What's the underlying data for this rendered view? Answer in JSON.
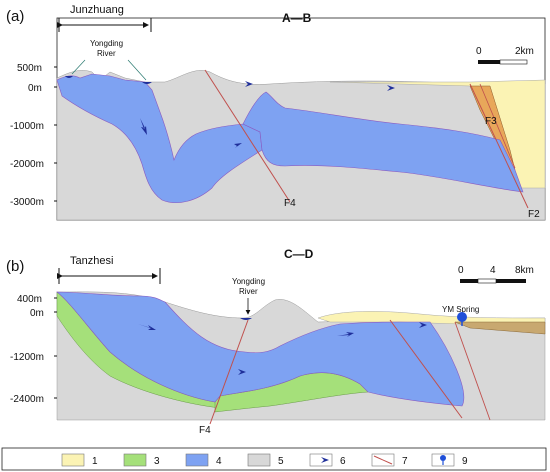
{
  "panel_a": {
    "panel_label": "(a)",
    "title": "A—B",
    "region_label": "Junzhuang",
    "river_label_line1": "Yongding",
    "river_label_line2": "River",
    "scale_start": "0",
    "scale_end": "2km",
    "depth_labels": [
      "500m",
      "0m",
      "-1000m",
      "-2000m",
      "-3000m"
    ],
    "faults": [
      "F4",
      "F3",
      "F2"
    ]
  },
  "panel_b": {
    "panel_label": "(b)",
    "title": "C—D",
    "region_label": "Tanzhesi",
    "river_label_line1": "Yongding",
    "river_label_line2": "River",
    "spring_label": "YM Spring",
    "scale_start": "0",
    "scale_mid": "4",
    "scale_end": "8km",
    "depth_labels": [
      "400m",
      "0m",
      "-1200m",
      "-2400m"
    ],
    "faults": [
      "F4"
    ]
  },
  "legend": {
    "items": [
      {
        "number": "1",
        "color": "#fbf3b4"
      },
      {
        "number": "3",
        "color": "#a5e07a"
      },
      {
        "number": "4",
        "color": "#7ea2f2"
      },
      {
        "number": "5",
        "color": "#d8d8d8"
      },
      {
        "number": "6",
        "icon": "flow-arrow-icon"
      },
      {
        "number": "7",
        "icon": "fault-line-icon"
      },
      {
        "number": "9",
        "icon": "spring-marker-icon"
      }
    ]
  },
  "colors": {
    "quaternary": "#fbf3b4",
    "layer3": "#a5e07a",
    "karst_aquifer": "#7ea2f2",
    "bedrock": "#d8d8d8",
    "f3_zone": "#e8a75a",
    "flow_arrow": "#1f2f9a",
    "fault": "#c0504d"
  }
}
